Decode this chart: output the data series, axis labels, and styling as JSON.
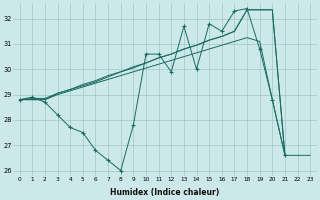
{
  "xlabel": "Humidex (Indice chaleur)",
  "background_color": "#cce8e8",
  "grid_color": "#a0c8c8",
  "line_color": "#1a6b60",
  "xlim": [
    -0.5,
    23.5
  ],
  "ylim": [
    25.8,
    32.6
  ],
  "yticks": [
    26,
    27,
    28,
    29,
    30,
    31,
    32
  ],
  "xticks": [
    0,
    1,
    2,
    3,
    4,
    5,
    6,
    7,
    8,
    9,
    10,
    11,
    12,
    13,
    14,
    15,
    16,
    17,
    18,
    19,
    20,
    21,
    22,
    23
  ],
  "series": [
    {
      "x": [
        0,
        1,
        2,
        3,
        4,
        5,
        6,
        7,
        8,
        9,
        10,
        11,
        12,
        13,
        14,
        15,
        16,
        17,
        18,
        19,
        20,
        21
      ],
      "y": [
        28.8,
        28.9,
        28.7,
        28.2,
        27.7,
        27.5,
        26.8,
        26.4,
        26.0,
        27.8,
        30.6,
        30.6,
        29.9,
        31.7,
        30.0,
        31.8,
        31.5,
        32.3,
        32.4,
        30.8,
        28.8,
        26.6
      ],
      "marker": true
    },
    {
      "x": [
        0,
        1,
        2,
        3,
        4,
        5,
        6,
        7,
        8,
        9,
        10,
        11,
        12,
        13,
        14,
        15,
        16,
        17,
        18,
        19,
        20,
        21,
        22,
        23
      ],
      "y": [
        28.8,
        28.8,
        28.8,
        29.0,
        29.15,
        29.3,
        29.45,
        29.6,
        29.75,
        29.9,
        30.05,
        30.2,
        30.35,
        30.5,
        30.65,
        30.8,
        30.95,
        31.1,
        31.25,
        31.1,
        28.8,
        26.6,
        26.6,
        26.6
      ],
      "marker": false
    },
    {
      "x": [
        0,
        1,
        2,
        3,
        4,
        5,
        6,
        7,
        8,
        9,
        10,
        11,
        12,
        13,
        14,
        15,
        16,
        17,
        18,
        19,
        20,
        21
      ],
      "y": [
        28.8,
        28.85,
        28.85,
        29.05,
        29.2,
        29.4,
        29.55,
        29.75,
        29.9,
        30.1,
        30.25,
        30.45,
        30.6,
        30.8,
        30.95,
        31.15,
        31.3,
        31.5,
        32.35,
        32.35,
        32.35,
        26.6
      ],
      "marker": false
    },
    {
      "x": [
        0,
        1,
        2,
        3,
        4,
        5,
        6,
        7,
        8,
        9,
        10,
        11,
        12,
        13,
        14,
        15,
        16,
        17,
        18,
        19,
        20,
        21
      ],
      "y": [
        28.8,
        28.8,
        28.8,
        29.05,
        29.2,
        29.35,
        29.5,
        29.7,
        29.9,
        30.05,
        30.25,
        30.45,
        30.6,
        30.8,
        30.95,
        31.15,
        31.3,
        31.5,
        32.35,
        32.35,
        32.35,
        26.6
      ],
      "marker": false
    }
  ]
}
